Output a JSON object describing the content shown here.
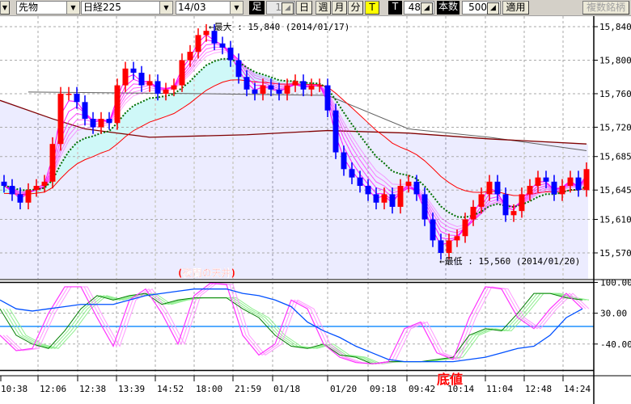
{
  "toolbar": {
    "menu_arrow": "▼",
    "market": "先物",
    "symbol": "日経225",
    "contract": "14/03",
    "bar_label": "足",
    "bar_count": "1",
    "btn_day": "日",
    "btn_week": "週",
    "btn_month": "月",
    "btn_minute": "分",
    "btn_tick": "T",
    "tick_label": "T",
    "tick_value": "48",
    "bars_label": "本数",
    "bars_value": "500",
    "apply": "適用",
    "multi_symbol": "複数銘柄"
  },
  "colors": {
    "up": "#ff0000",
    "down": "#0000ff",
    "ma_fast": "#007000",
    "ma_mid": "#ff0000",
    "ma_gray": "#606060",
    "ma_darkred": "#800000",
    "ribbon": "#ff00ff",
    "osc_fast": "#ff33ff",
    "osc_slow": "#008000",
    "osc_blue": "#0050ff",
    "zero_line": "#1e90ff",
    "annotation": "#ff0000"
  },
  "chart_data": {
    "type": "candlestick",
    "price_axis_ticks": [
      "15,840",
      "15,800",
      "15,760",
      "15,720",
      "15,685",
      "15,645",
      "15,610",
      "15,570"
    ],
    "price_axis_values": [
      15840,
      15800,
      15760,
      15720,
      15685,
      15645,
      15610,
      15570
    ],
    "osc_axis_ticks": [
      "100.00",
      "30.00",
      "-40.00"
    ],
    "osc_axis_values": [
      100,
      30,
      -40
    ],
    "time_labels": [
      "10:38",
      "12:06",
      "12:38",
      "13:39",
      "14:52",
      "18:00",
      "21:59",
      "01/18",
      "01/20",
      "09:18",
      "09:42",
      "10:14",
      "11:04",
      "12:48",
      "14:24"
    ],
    "closes": [
      15650,
      15640,
      15630,
      15645,
      15650,
      15655,
      15700,
      15760,
      15760,
      15750,
      15730,
      15720,
      15730,
      15725,
      15770,
      15790,
      15785,
      15770,
      15775,
      15760,
      15765,
      15770,
      15800,
      15810,
      15830,
      15835,
      15820,
      15815,
      15800,
      15780,
      15765,
      15760,
      15770,
      15765,
      15760,
      15770,
      15775,
      15765,
      15770,
      15770,
      15740,
      15690,
      15670,
      15660,
      15650,
      15640,
      15630,
      15640,
      15625,
      15650,
      15655,
      15640,
      15610,
      15585,
      15570,
      15585,
      15590,
      15610,
      15625,
      15640,
      15655,
      15640,
      15615,
      15620,
      15640,
      15650,
      15660,
      15655,
      15640,
      15650,
      15660,
      15645,
      15670
    ],
    "ma_gray": [
      [
        3,
        15762
      ],
      [
        25,
        15760
      ],
      [
        40,
        15758
      ],
      [
        50,
        15718
      ],
      [
        60,
        15708
      ],
      [
        72,
        15692
      ]
    ],
    "ma_darkred": [
      [
        0,
        15752
      ],
      [
        6,
        15730
      ],
      [
        10,
        15718
      ],
      [
        18,
        15708
      ],
      [
        30,
        15711
      ],
      [
        40,
        15716
      ],
      [
        50,
        15713
      ],
      [
        60,
        15706
      ],
      [
        72,
        15700
      ]
    ],
    "max_annotation": "←最大 : 15,840 (2014/01/17)",
    "min_annotation": "←最低 : 15,560 (2014/01/20)",
    "note_top": "(夜間の天井)",
    "note_bottom": "底値",
    "osc_fast": [
      -20,
      -55,
      -50,
      30,
      90,
      90,
      20,
      -45,
      60,
      85,
      30,
      -40,
      70,
      98,
      95,
      -20,
      -65,
      -40,
      60,
      40,
      -40,
      -70,
      -82,
      -85,
      -80,
      -5,
      10,
      -60,
      -75,
      20,
      90,
      85,
      20,
      -5,
      40,
      75,
      40
    ],
    "osc_slow": [
      40,
      -20,
      -40,
      -50,
      -10,
      40,
      70,
      60,
      70,
      75,
      50,
      60,
      65,
      65,
      65,
      40,
      20,
      -20,
      -45,
      -50,
      -40,
      -65,
      -70,
      -85,
      -80,
      -80,
      -80,
      -75,
      -70,
      -20,
      -5,
      -10,
      30,
      75,
      75,
      65,
      60
    ],
    "osc_blue": [
      60,
      40,
      35,
      40,
      45,
      50,
      50,
      50,
      60,
      70,
      75,
      80,
      85,
      85,
      85,
      75,
      70,
      60,
      45,
      10,
      -10,
      -25,
      -45,
      -60,
      -75,
      -80,
      -80,
      -80,
      -80,
      -75,
      -70,
      -60,
      -50,
      -45,
      -20,
      20,
      40
    ],
    "osc_zero": 0
  }
}
